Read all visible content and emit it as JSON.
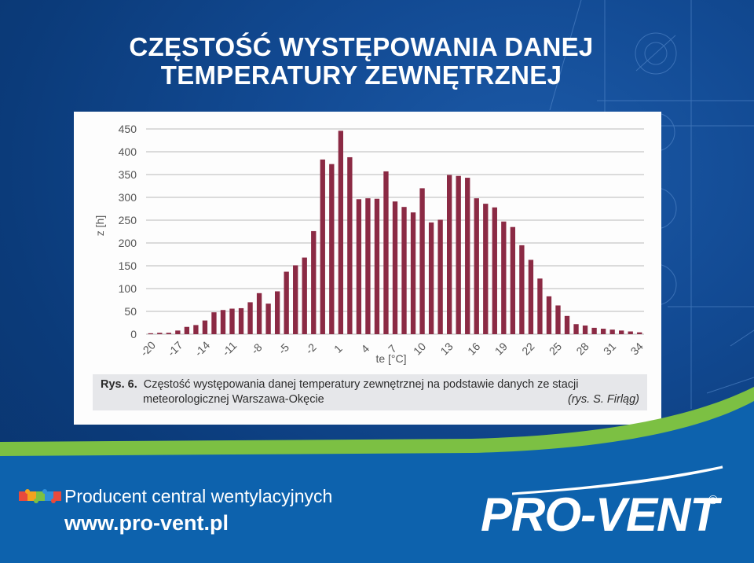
{
  "slide": {
    "title_line1": "CZĘSTOŚĆ WYSTĘPOWANIA DANEJ",
    "title_line2": "TEMPERATURY ZEWNĘTRZNEJ"
  },
  "figure": {
    "caption_label": "Rys. 6.",
    "caption_line1": "Częstość występowania danej temperatury zewnętrznej na podstawie danych ze stacji",
    "caption_line2": "meteorologicznej Warszawa-Okęcie",
    "caption_credit": "(rys. S. Firląg)"
  },
  "chart_data": {
    "type": "bar",
    "xlabel": "te [°C]",
    "ylabel": "z [h]",
    "ylim": [
      0,
      450
    ],
    "y_ticks": [
      0,
      50,
      100,
      150,
      200,
      250,
      300,
      350,
      400,
      450
    ],
    "x_tick_labels": [
      "-20",
      "-17",
      "-14",
      "-11",
      "-8",
      "-5",
      "-2",
      "1",
      "4",
      "7",
      "10",
      "13",
      "16",
      "19",
      "22",
      "25",
      "28",
      "31",
      "34"
    ],
    "grid": true,
    "bar_color": "#8b2a44",
    "x": [
      -20,
      -19,
      -18,
      -17,
      -16,
      -15,
      -14,
      -13,
      -12,
      -11,
      -10,
      -9,
      -8,
      -7,
      -6,
      -5,
      -4,
      -3,
      -2,
      -1,
      0,
      1,
      2,
      3,
      4,
      5,
      6,
      7,
      8,
      9,
      10,
      11,
      12,
      13,
      14,
      15,
      16,
      17,
      18,
      19,
      20,
      21,
      22,
      23,
      24,
      25,
      26,
      27,
      28,
      29,
      30,
      31,
      32,
      33,
      34
    ],
    "values": [
      2,
      3,
      3,
      8,
      16,
      20,
      30,
      48,
      53,
      56,
      57,
      70,
      90,
      67,
      94,
      137,
      151,
      168,
      226,
      383,
      373,
      446,
      388,
      296,
      298,
      297,
      357,
      291,
      279,
      267,
      320,
      245,
      251,
      349,
      347,
      343,
      298,
      286,
      278,
      247,
      235,
      195,
      163,
      122,
      83,
      63,
      40,
      22,
      19,
      14,
      12,
      10,
      8,
      6,
      4
    ]
  },
  "footer": {
    "tagline": "Producent central wentylacyjnych",
    "url": "www.pro-vent.pl",
    "brand": "PRO-VENT",
    "reg_mark": "®"
  },
  "colors": {
    "background_blue": "#0b3f83",
    "accent_green": "#7cc043",
    "footer_blue": "#0d62ad"
  }
}
